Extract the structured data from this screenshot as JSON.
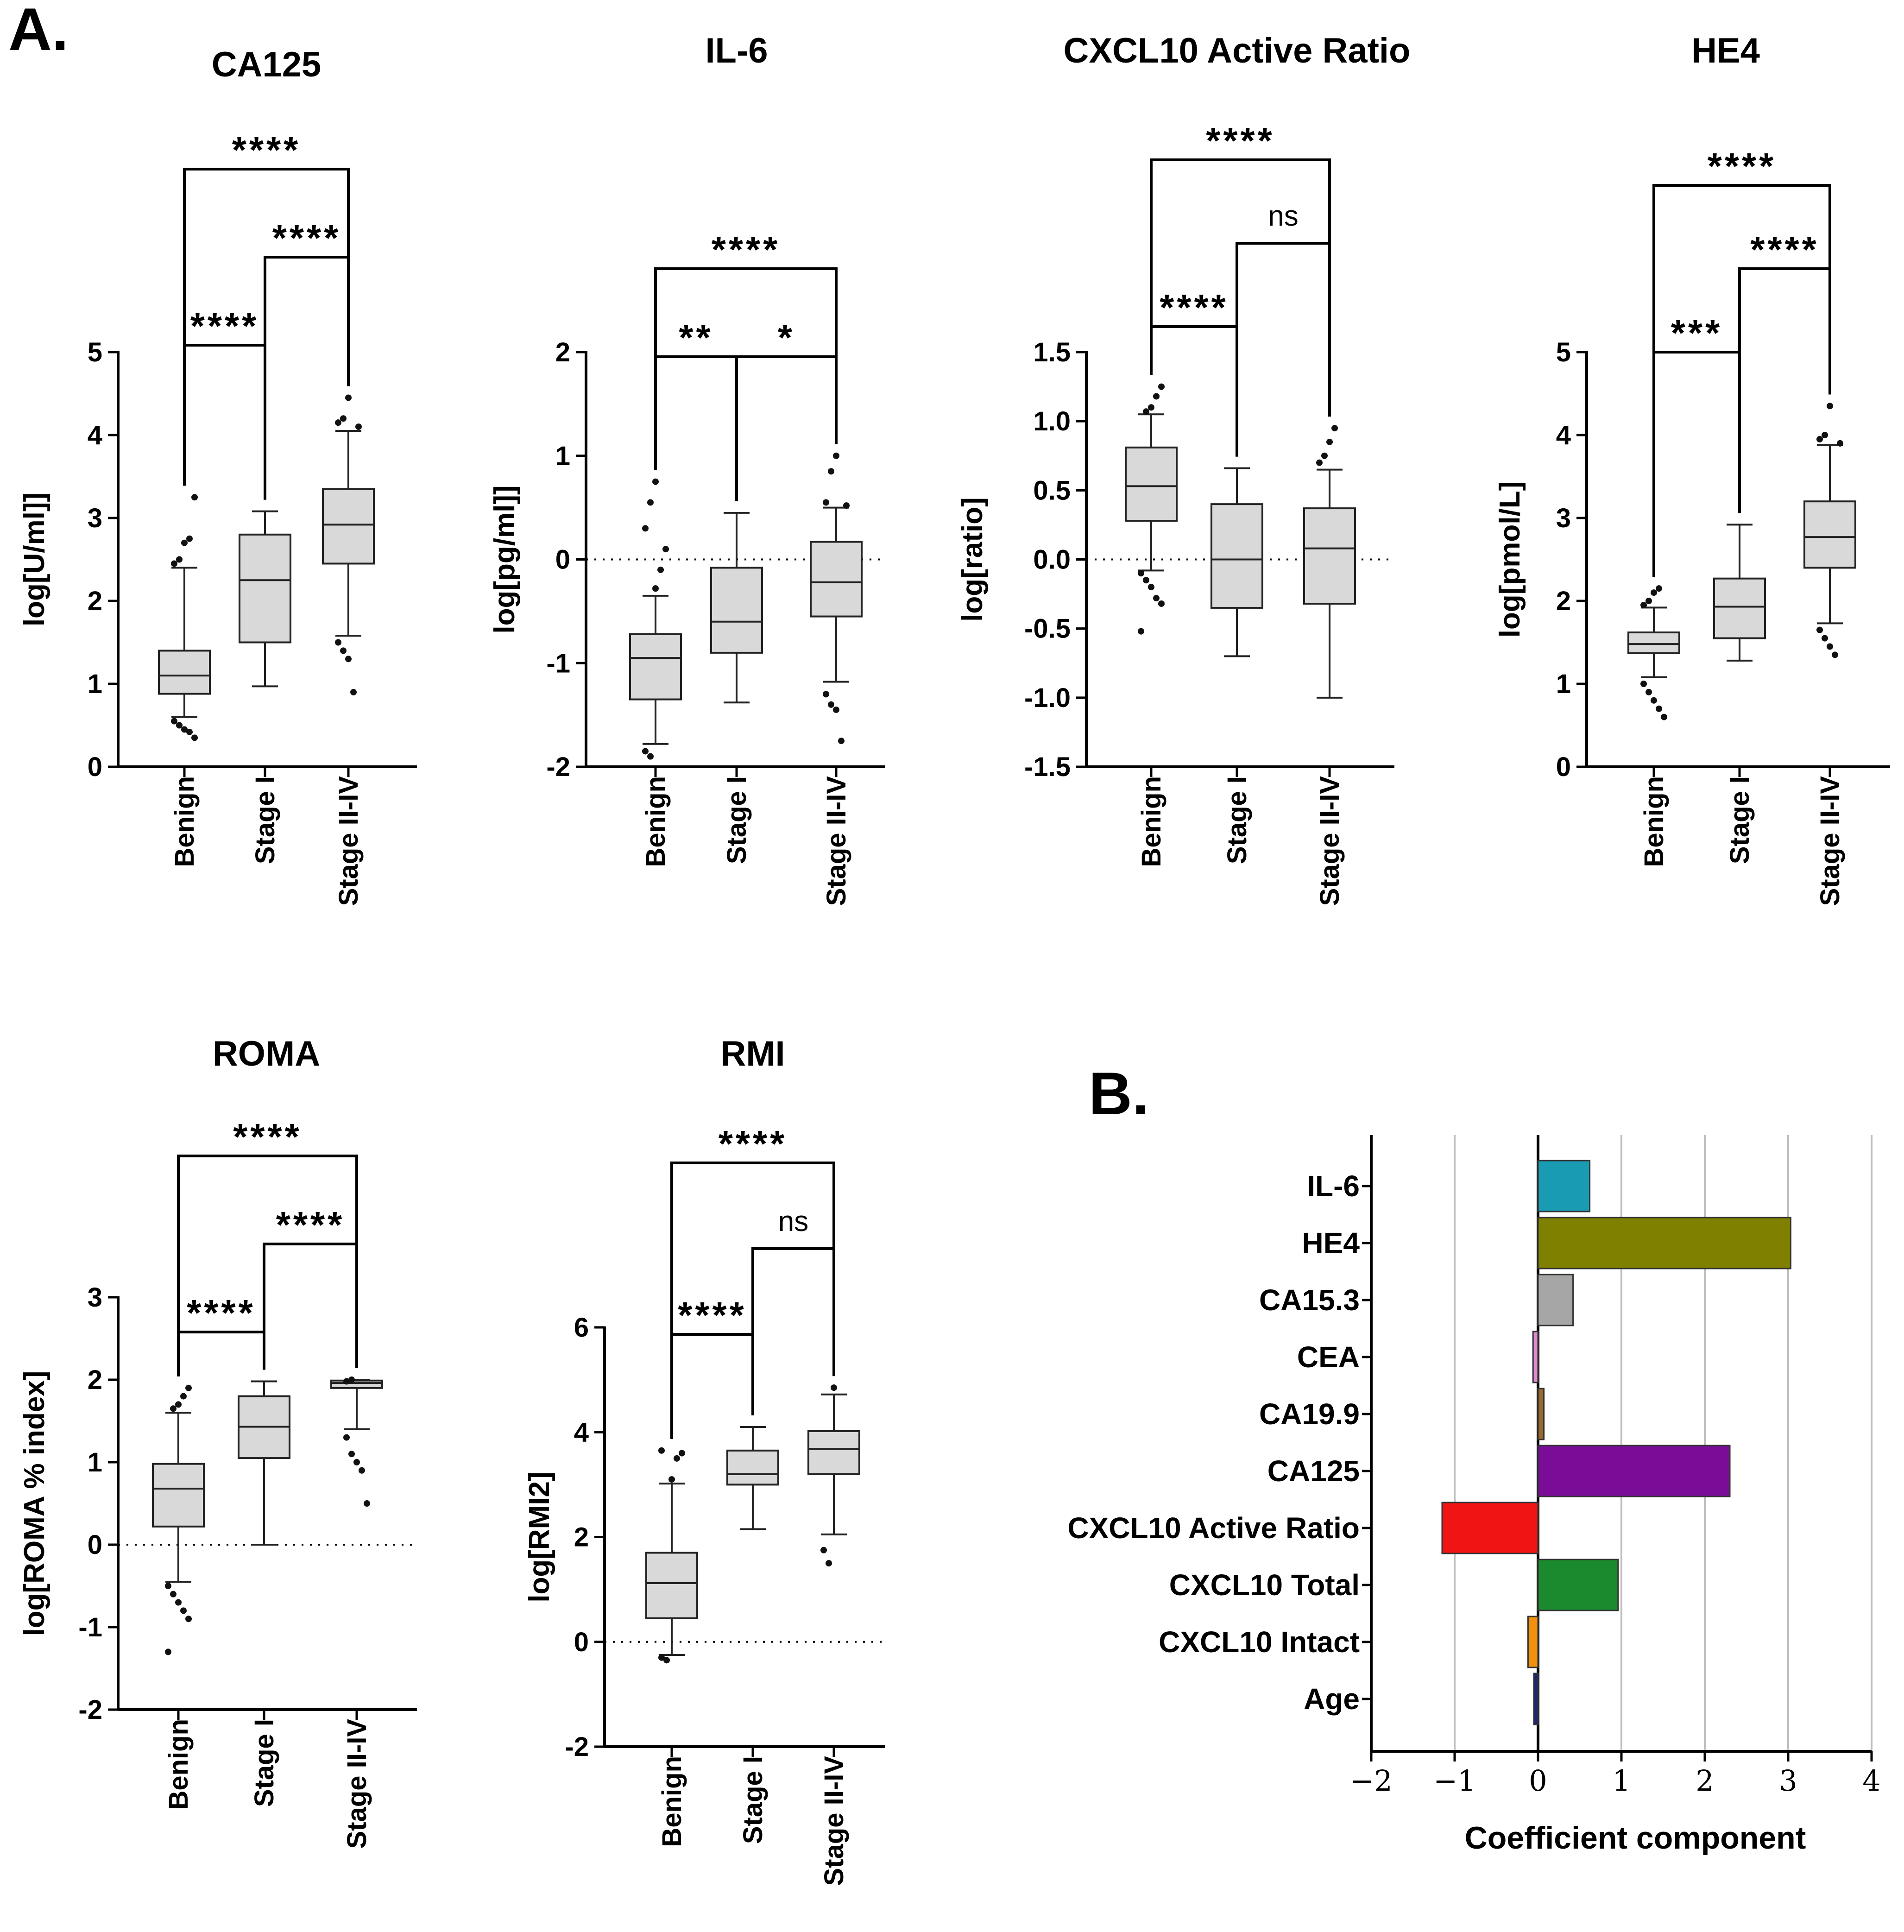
{
  "panel_labels": {
    "a": "A.",
    "b": "B."
  },
  "chart_data": [
    {
      "id": "ca125",
      "type": "box",
      "title": "CA125",
      "ylabel": "log[U/ml]]",
      "ylim": [
        0,
        5
      ],
      "yticks": [
        0,
        1,
        2,
        3,
        4,
        5
      ],
      "categories": [
        "Benign",
        "Stage I",
        "Stage II-IV"
      ],
      "boxes": [
        {
          "q1": 0.88,
          "median": 1.1,
          "q3": 1.4,
          "wlo": 0.6,
          "whi": 2.4,
          "outliers": [
            0.55,
            0.5,
            0.45,
            0.42,
            0.35,
            2.45,
            2.5,
            2.7,
            2.75,
            3.25
          ]
        },
        {
          "q1": 1.5,
          "median": 2.25,
          "q3": 2.8,
          "wlo": 0.97,
          "whi": 3.08,
          "outliers": []
        },
        {
          "q1": 2.45,
          "median": 2.92,
          "q3": 3.35,
          "wlo": 1.58,
          "whi": 4.05,
          "outliers": [
            1.5,
            1.4,
            1.3,
            0.9,
            4.1,
            4.15,
            4.2,
            4.45
          ]
        }
      ],
      "refline": null,
      "comparisons": [
        {
          "from": 0,
          "to": 1,
          "level": 0,
          "label": "****"
        },
        {
          "from": 1,
          "to": 2,
          "level": 1,
          "label": "****"
        },
        {
          "from": 0,
          "to": 2,
          "level": 2,
          "label": "****"
        }
      ]
    },
    {
      "id": "il6",
      "type": "box",
      "title": "IL-6",
      "ylabel": "log[pg/ml]]",
      "ylim": [
        -2,
        2
      ],
      "yticks": [
        -2,
        -1,
        0,
        1,
        2
      ],
      "categories": [
        "Benign",
        "Stage I",
        "Stage II-IV"
      ],
      "boxes": [
        {
          "q1": -1.35,
          "median": -0.95,
          "q3": -0.72,
          "wlo": -1.78,
          "whi": -0.35,
          "outliers": [
            -1.85,
            -1.9,
            -0.28,
            -0.1,
            0.1,
            0.3,
            0.55,
            0.75
          ]
        },
        {
          "q1": -0.9,
          "median": -0.6,
          "q3": -0.08,
          "wlo": -1.38,
          "whi": 0.45,
          "outliers": []
        },
        {
          "q1": -0.55,
          "median": -0.22,
          "q3": 0.17,
          "wlo": -1.18,
          "whi": 0.5,
          "outliers": [
            -1.3,
            -1.4,
            -1.45,
            -1.75,
            0.52,
            0.55,
            0.85,
            1.0
          ]
        }
      ],
      "refline": 0,
      "comparisons": [
        {
          "from": 0,
          "to": 1,
          "level": 0,
          "label": "**"
        },
        {
          "from": 1,
          "to": 2,
          "level": 0,
          "label": "*"
        },
        {
          "from": 0,
          "to": 2,
          "level": 1,
          "label": "****"
        }
      ]
    },
    {
      "id": "cxcl10",
      "type": "box",
      "title": "CXCL10 Active Ratio",
      "ylabel": "log[ratio]",
      "ylim": [
        -1.5,
        1.5
      ],
      "yticks": [
        -1.5,
        -1.0,
        -0.5,
        0.0,
        0.5,
        1.0,
        1.5
      ],
      "categories": [
        "Benign",
        "Stage I",
        "Stage II-IV"
      ],
      "boxes": [
        {
          "q1": 0.28,
          "median": 0.53,
          "q3": 0.81,
          "wlo": -0.08,
          "whi": 1.05,
          "outliers": [
            -0.1,
            -0.15,
            -0.2,
            -0.28,
            -0.32,
            -0.52,
            1.07,
            1.1,
            1.18,
            1.25
          ]
        },
        {
          "q1": -0.35,
          "median": 0.0,
          "q3": 0.4,
          "wlo": -0.7,
          "whi": 0.66,
          "outliers": []
        },
        {
          "q1": -0.32,
          "median": 0.08,
          "q3": 0.37,
          "wlo": -1.0,
          "whi": 0.65,
          "outliers": [
            0.7,
            0.75,
            0.85,
            0.95
          ]
        }
      ],
      "refline": 0,
      "comparisons": [
        {
          "from": 0,
          "to": 1,
          "level": 0,
          "label": "****"
        },
        {
          "from": 1,
          "to": 2,
          "level": 1,
          "label": "ns"
        },
        {
          "from": 0,
          "to": 2,
          "level": 2,
          "label": "****"
        }
      ]
    },
    {
      "id": "he4",
      "type": "box",
      "title": "HE4",
      "ylabel": "log[pmol/L]",
      "ylim": [
        0,
        5
      ],
      "yticks": [
        0,
        1,
        2,
        3,
        4,
        5
      ],
      "categories": [
        "Benign",
        "Stage I",
        "Stage II-IV"
      ],
      "boxes": [
        {
          "q1": 1.37,
          "median": 1.48,
          "q3": 1.62,
          "wlo": 1.08,
          "whi": 1.92,
          "outliers": [
            1.0,
            0.9,
            0.8,
            0.7,
            0.6,
            1.95,
            2.0,
            2.1,
            2.15
          ]
        },
        {
          "q1": 1.55,
          "median": 1.93,
          "q3": 2.27,
          "wlo": 1.28,
          "whi": 2.92,
          "outliers": []
        },
        {
          "q1": 2.4,
          "median": 2.77,
          "q3": 3.2,
          "wlo": 1.73,
          "whi": 3.88,
          "outliers": [
            1.65,
            1.55,
            1.45,
            1.35,
            3.9,
            3.95,
            4.0,
            4.35
          ]
        }
      ],
      "refline": null,
      "comparisons": [
        {
          "from": 0,
          "to": 1,
          "level": 0,
          "label": "***"
        },
        {
          "from": 1,
          "to": 2,
          "level": 1,
          "label": "****"
        },
        {
          "from": 0,
          "to": 2,
          "level": 2,
          "label": "****"
        }
      ]
    },
    {
      "id": "roma",
      "type": "box",
      "title": "ROMA",
      "ylabel": "log[ROMA % index]",
      "ylim": [
        -2,
        3
      ],
      "yticks": [
        -2,
        -1,
        0,
        1,
        2,
        3
      ],
      "categories": [
        "Benign",
        "Stage I",
        "Stage II-IV"
      ],
      "boxes": [
        {
          "q1": 0.22,
          "median": 0.68,
          "q3": 0.98,
          "wlo": -0.45,
          "whi": 1.6,
          "outliers": [
            -0.5,
            -0.6,
            -0.7,
            -0.8,
            -0.9,
            -1.3,
            1.65,
            1.7,
            1.8,
            1.9
          ]
        },
        {
          "q1": 1.05,
          "median": 1.43,
          "q3": 1.8,
          "wlo": 0.0,
          "whi": 1.98,
          "outliers": []
        },
        {
          "q1": 1.9,
          "median": 1.96,
          "q3": 1.99,
          "wlo": 1.4,
          "whi": 2.0,
          "outliers": [
            1.3,
            1.1,
            1.0,
            0.9,
            0.5,
            1.98,
            2.0
          ]
        }
      ],
      "refline": 0,
      "comparisons": [
        {
          "from": 0,
          "to": 1,
          "level": 0,
          "label": "****"
        },
        {
          "from": 1,
          "to": 2,
          "level": 1,
          "label": "****"
        },
        {
          "from": 0,
          "to": 2,
          "level": 2,
          "label": "****"
        }
      ]
    },
    {
      "id": "rmi",
      "type": "box",
      "title": "RMI",
      "ylabel": "log[RMI2]",
      "ylim": [
        -2,
        6
      ],
      "yticks": [
        -2,
        0,
        2,
        4,
        6
      ],
      "categories": [
        "Benign",
        "Stage I",
        "Stage II-IV"
      ],
      "boxes": [
        {
          "q1": 0.45,
          "median": 1.12,
          "q3": 1.7,
          "wlo": -0.25,
          "whi": 3.02,
          "outliers": [
            -0.3,
            -0.35,
            3.1,
            3.5,
            3.6,
            3.65
          ]
        },
        {
          "q1": 3.0,
          "median": 3.2,
          "q3": 3.65,
          "wlo": 2.15,
          "whi": 4.1,
          "outliers": []
        },
        {
          "q1": 3.2,
          "median": 3.68,
          "q3": 4.02,
          "wlo": 2.05,
          "whi": 4.72,
          "outliers": [
            1.75,
            1.5,
            4.85
          ]
        }
      ],
      "refline": 0,
      "comparisons": [
        {
          "from": 0,
          "to": 1,
          "level": 0,
          "label": "****"
        },
        {
          "from": 1,
          "to": 2,
          "level": 1,
          "label": "ns"
        },
        {
          "from": 0,
          "to": 2,
          "level": 2,
          "label": "****"
        }
      ]
    },
    {
      "id": "coefficients",
      "type": "bar",
      "orientation": "horizontal",
      "title": "",
      "xlabel": "Coefficient component",
      "ylabel": "",
      "xlim": [
        -2,
        4
      ],
      "xticks": [
        -2,
        -1,
        0,
        1,
        2,
        3,
        4
      ],
      "xtick_labels": [
        "−2",
        "−1",
        "0",
        "1",
        "2",
        "3",
        "4"
      ],
      "grid": true,
      "categories": [
        "IL-6",
        "HE4",
        "CA15.3",
        "CEA",
        "CA19.9",
        "CA125",
        "CXCL10 Active Ratio",
        "CXCL10 Total",
        "CXCL10 Intact",
        "Age"
      ],
      "values": [
        0.62,
        3.03,
        0.42,
        -0.06,
        0.07,
        2.3,
        -1.15,
        0.96,
        -0.12,
        -0.05
      ],
      "colors": [
        "#1a9bb4",
        "#808000",
        "#a6a6a6",
        "#e08ad0",
        "#9a6a2a",
        "#7a0c98",
        "#f01414",
        "#1b8a2e",
        "#f0900c",
        "#1a237e"
      ]
    }
  ]
}
